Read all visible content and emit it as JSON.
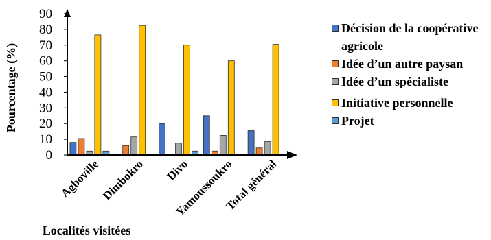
{
  "chart_data": {
    "type": "bar",
    "title": "",
    "xlabel": "Localités visitées",
    "ylabel": "Pourcentage (%)",
    "ylim": [
      0,
      90
    ],
    "yticks": [
      0,
      10,
      20,
      30,
      40,
      50,
      60,
      70,
      80,
      90
    ],
    "grid": false,
    "legend_position": "right",
    "categories": [
      "Agboville",
      "Dimbokro",
      "Divo",
      "Yamoussoukro",
      "Total général"
    ],
    "series": [
      {
        "name": "Décision de la coopérative agricole",
        "color": "#4472C4",
        "values": [
          8,
          0,
          20,
          25,
          15.5
        ]
      },
      {
        "name": "Idée d’un autre paysan",
        "color": "#ED7D31",
        "values": [
          10.5,
          6,
          0,
          2.5,
          4.5
        ]
      },
      {
        "name": "Idée d’un spécialiste",
        "color": "#A5A5A5",
        "values": [
          2.5,
          11.5,
          7.5,
          12.5,
          8.5
        ]
      },
      {
        "name": "Initiative personnelle",
        "color": "#FFC000",
        "values": [
          76.5,
          82.5,
          70,
          60,
          70.5
        ]
      },
      {
        "name": "Projet",
        "color": "#5B9BD5",
        "values": [
          2.5,
          0,
          2.5,
          0,
          0
        ]
      }
    ]
  }
}
